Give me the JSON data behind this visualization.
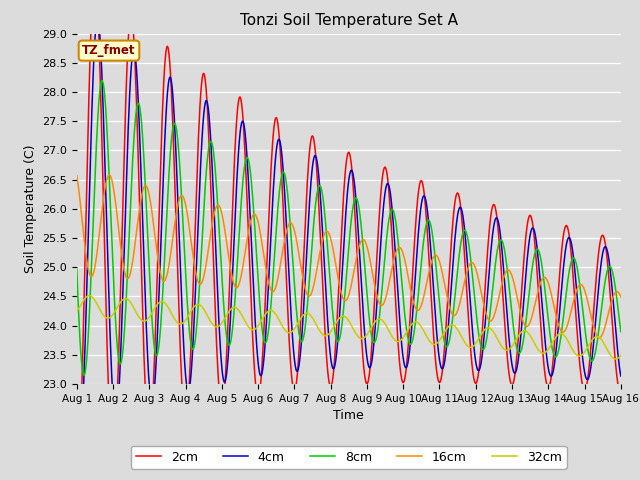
{
  "title": "Tonzi Soil Temperature Set A",
  "xlabel": "Time",
  "ylabel": "Soil Temperature (C)",
  "ylim": [
    23.0,
    29.0
  ],
  "yticks": [
    23.0,
    23.5,
    24.0,
    24.5,
    25.0,
    25.5,
    26.0,
    26.5,
    27.0,
    27.5,
    28.0,
    28.5,
    29.0
  ],
  "xtick_labels": [
    "Aug 1",
    "Aug 2",
    "Aug 3",
    "Aug 4",
    "Aug 5",
    "Aug 6",
    "Aug 7",
    "Aug 8",
    "Aug 9",
    "Aug 10",
    "Aug 11",
    "Aug 12",
    "Aug 13",
    "Aug 14",
    "Aug 15",
    "Aug 16"
  ],
  "series_colors": {
    "2cm": "#ff0000",
    "4cm": "#0000cc",
    "8cm": "#00cc00",
    "16cm": "#ff8800",
    "32cm": "#cccc00"
  },
  "legend_label": "TZ_fmet",
  "legend_bg": "#ffffcc",
  "legend_border": "#cc8800",
  "bg_color": "#dcdcdc",
  "days": 15,
  "n_points": 721
}
